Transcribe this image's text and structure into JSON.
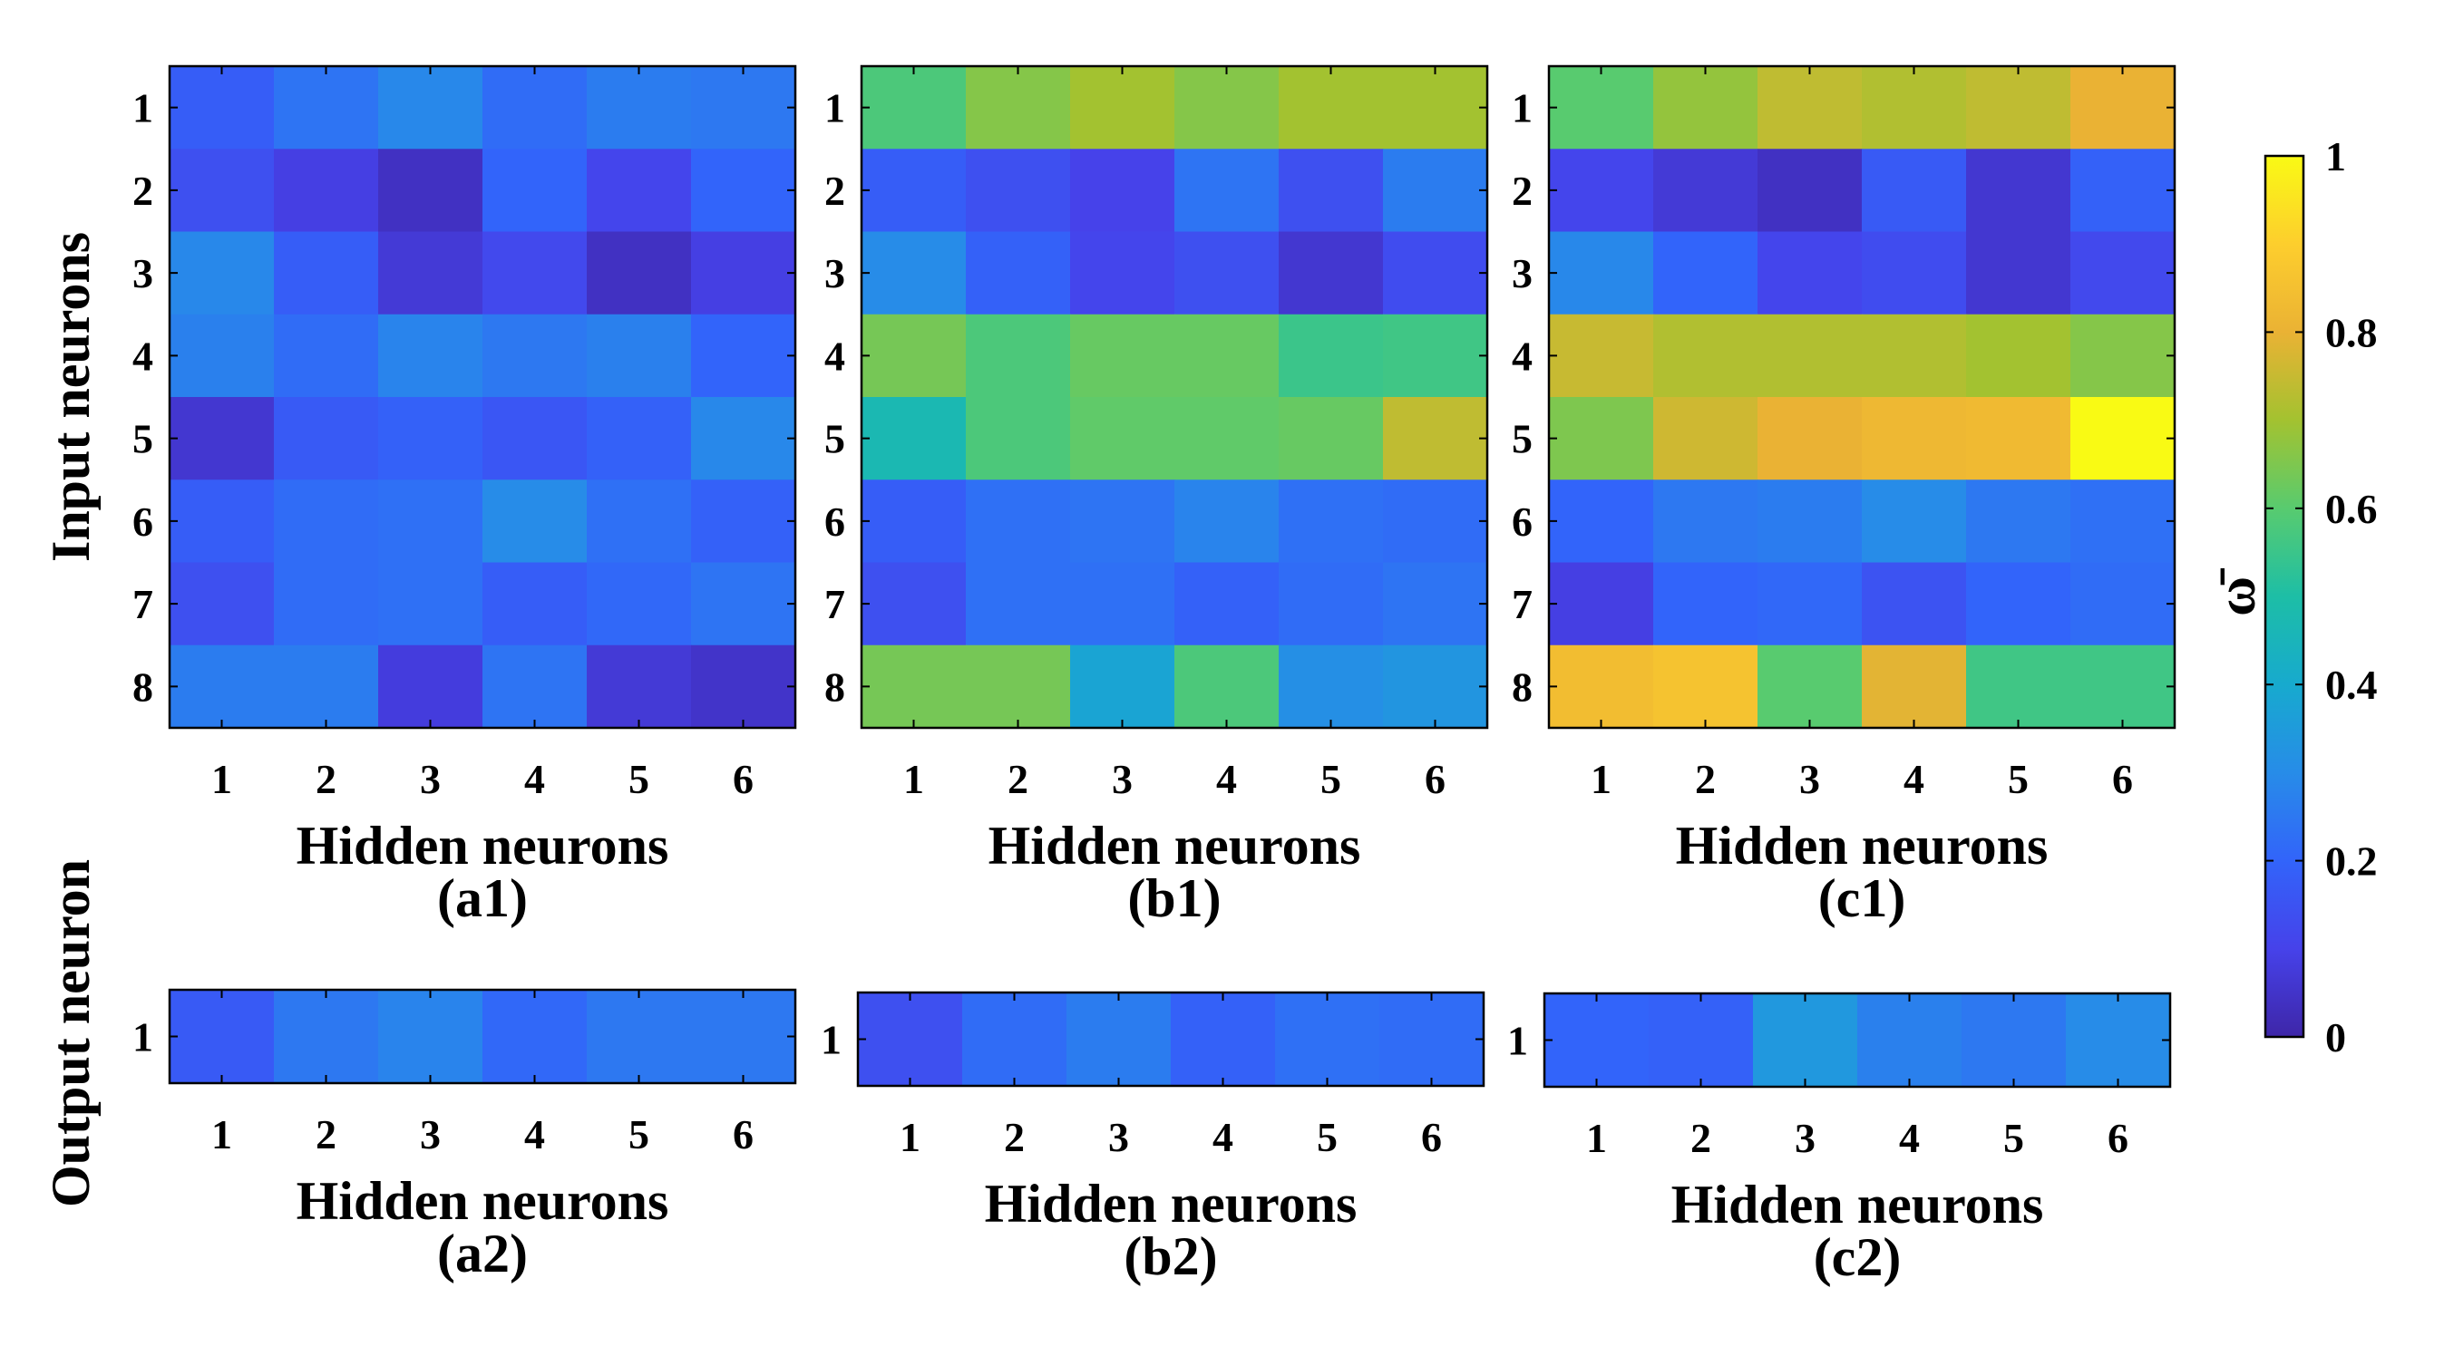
{
  "chart_data": {
    "type": "heatmap",
    "colormap": "parula",
    "clim": [
      0,
      1
    ],
    "colorbar": {
      "label": "ω̄",
      "ticks": [
        0,
        0.2,
        0.4,
        0.6,
        0.8,
        1
      ]
    },
    "row_labels": {
      "top": "Input neurons",
      "bottom": "Output neuron"
    },
    "panels": [
      {
        "id": "a1",
        "label": "(a1)",
        "xlabel": "Hidden neurons",
        "ylabel": "Input neurons",
        "x": [
          1,
          2,
          3,
          4,
          5,
          6
        ],
        "y": [
          1,
          2,
          3,
          4,
          5,
          6,
          7,
          8
        ],
        "values": [
          [
            0.18,
            0.24,
            0.29,
            0.22,
            0.26,
            0.25
          ],
          [
            0.14,
            0.09,
            0.04,
            0.2,
            0.11,
            0.2
          ],
          [
            0.29,
            0.18,
            0.07,
            0.12,
            0.04,
            0.09
          ],
          [
            0.27,
            0.22,
            0.28,
            0.25,
            0.27,
            0.2
          ],
          [
            0.06,
            0.17,
            0.19,
            0.16,
            0.19,
            0.29
          ],
          [
            0.18,
            0.22,
            0.23,
            0.3,
            0.23,
            0.19
          ],
          [
            0.14,
            0.22,
            0.23,
            0.18,
            0.21,
            0.24
          ],
          [
            0.26,
            0.26,
            0.08,
            0.24,
            0.07,
            0.05
          ]
        ]
      },
      {
        "id": "b1",
        "label": "(b1)",
        "xlabel": "Hidden neurons",
        "ylabel": "",
        "x": [
          1,
          2,
          3,
          4,
          5,
          6
        ],
        "y": [
          1,
          2,
          3,
          4,
          5,
          6,
          7,
          8
        ],
        "values": [
          [
            0.58,
            0.66,
            0.7,
            0.66,
            0.7,
            0.7
          ],
          [
            0.18,
            0.14,
            0.1,
            0.24,
            0.14,
            0.26
          ],
          [
            0.3,
            0.19,
            0.11,
            0.14,
            0.06,
            0.13
          ],
          [
            0.64,
            0.58,
            0.62,
            0.62,
            0.55,
            0.56
          ],
          [
            0.47,
            0.58,
            0.61,
            0.61,
            0.62,
            0.74
          ],
          [
            0.18,
            0.23,
            0.24,
            0.28,
            0.23,
            0.22
          ],
          [
            0.14,
            0.23,
            0.23,
            0.19,
            0.22,
            0.24
          ],
          [
            0.64,
            0.64,
            0.38,
            0.58,
            0.31,
            0.33
          ]
        ]
      },
      {
        "id": "c1",
        "label": "(c1)",
        "xlabel": "Hidden neurons",
        "ylabel": "",
        "x": [
          1,
          2,
          3,
          4,
          5,
          6
        ],
        "y": [
          1,
          2,
          3,
          4,
          5,
          6,
          7,
          8
        ],
        "values": [
          [
            0.6,
            0.68,
            0.74,
            0.72,
            0.74,
            0.8
          ],
          [
            0.11,
            0.07,
            0.04,
            0.17,
            0.06,
            0.19
          ],
          [
            0.29,
            0.2,
            0.11,
            0.13,
            0.06,
            0.12
          ],
          [
            0.75,
            0.72,
            0.72,
            0.72,
            0.7,
            0.66
          ],
          [
            0.65,
            0.76,
            0.8,
            0.82,
            0.83,
            1.0
          ],
          [
            0.2,
            0.25,
            0.26,
            0.3,
            0.25,
            0.23
          ],
          [
            0.09,
            0.2,
            0.21,
            0.15,
            0.2,
            0.22
          ],
          [
            0.84,
            0.86,
            0.6,
            0.79,
            0.56,
            0.56
          ]
        ]
      },
      {
        "id": "a2",
        "label": "(a2)",
        "xlabel": "Hidden neurons",
        "ylabel": "Output neuron",
        "x": [
          1,
          2,
          3,
          4,
          5,
          6
        ],
        "y": [
          1
        ],
        "values": [
          [
            0.17,
            0.25,
            0.28,
            0.21,
            0.25,
            0.25
          ]
        ]
      },
      {
        "id": "b2",
        "label": "(b2)",
        "xlabel": "Hidden neurons",
        "ylabel": "",
        "x": [
          1,
          2,
          3,
          4,
          5,
          6
        ],
        "y": [
          1
        ],
        "values": [
          [
            0.14,
            0.22,
            0.26,
            0.19,
            0.23,
            0.22
          ]
        ]
      },
      {
        "id": "c2",
        "label": "(c2)",
        "xlabel": "Hidden neurons",
        "ylabel": "",
        "x": [
          1,
          2,
          3,
          4,
          5,
          6
        ],
        "y": [
          1
        ],
        "values": [
          [
            0.2,
            0.19,
            0.34,
            0.27,
            0.25,
            0.3
          ]
        ]
      }
    ]
  }
}
